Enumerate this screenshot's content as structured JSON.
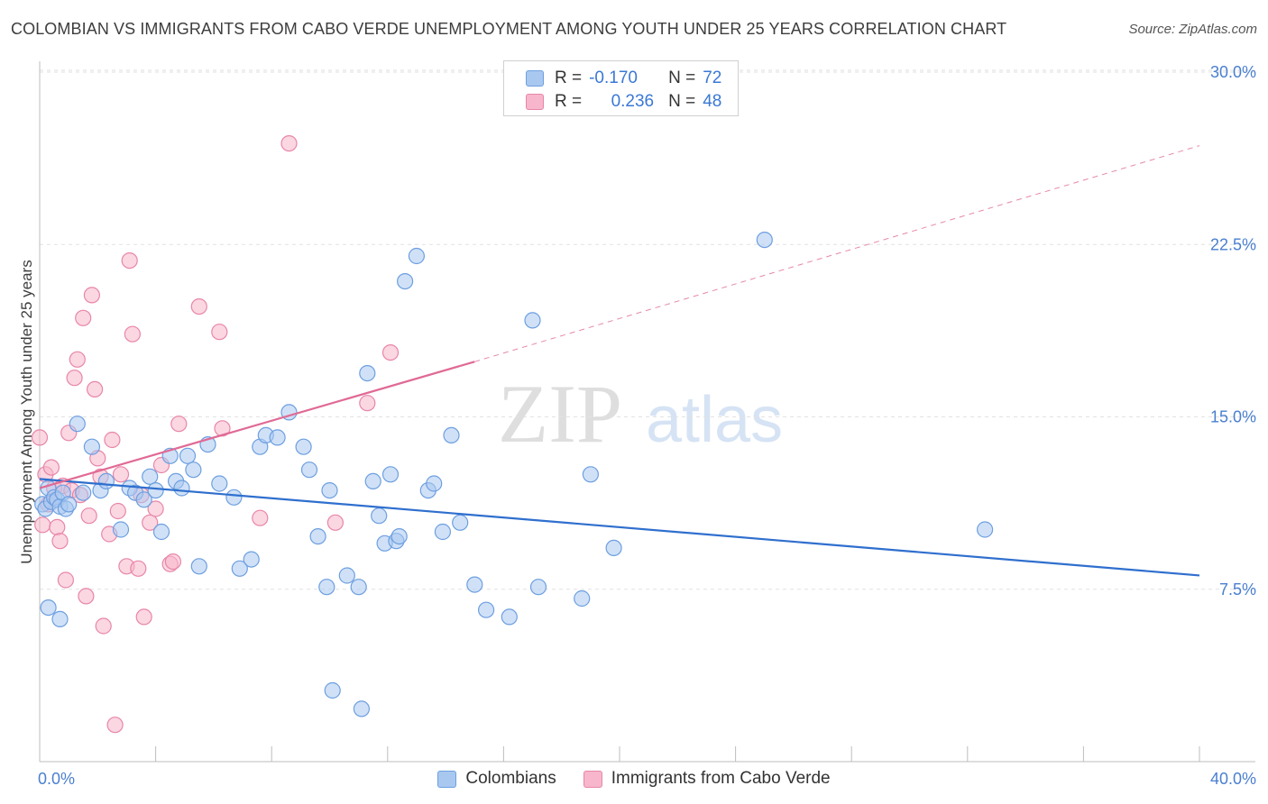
{
  "title": "COLOMBIAN VS IMMIGRANTS FROM CABO VERDE UNEMPLOYMENT AMONG YOUTH UNDER 25 YEARS CORRELATION CHART",
  "source": "Source: ZipAtlas.com",
  "watermark": {
    "zip": "ZIP",
    "atlas": "atlas"
  },
  "stats": {
    "blue": {
      "r_label": "R =",
      "r": "-0.170",
      "n_label": "N =",
      "n": "72"
    },
    "pink": {
      "r_label": "R =",
      "r": "0.236",
      "n_label": "N =",
      "n": "48"
    }
  },
  "legend": {
    "blue": "Colombians",
    "pink": "Immigrants from Cabo Verde"
  },
  "colors": {
    "blue": "#a9c8f0",
    "blue_edge": "#6d9fe0",
    "blue_line": "#2f6fce",
    "pink": "#f7b6cb",
    "pink_edge": "#e886a8",
    "pink_line": "#e06a95",
    "tick": "#4a7fd0"
  },
  "chart_data": {
    "type": "scatter",
    "title": "COLOMBIAN VS IMMIGRANTS FROM CABO VERDE UNEMPLOYMENT AMONG YOUTH UNDER 25 YEARS CORRELATION CHART",
    "xlabel": "",
    "ylabel": "Unemployment Among Youth under 25 years",
    "xlim": [
      0,
      40
    ],
    "ylim": [
      0,
      30.5
    ],
    "x_tick_labels": [
      "0.0%",
      "40.0%"
    ],
    "y_ticks": [
      7.5,
      15.0,
      22.5,
      30.0
    ],
    "y_tick_labels": [
      "7.5%",
      "15.0%",
      "22.5%",
      "30.0%"
    ],
    "grid": true,
    "series": [
      {
        "name": "Colombians",
        "x": [
          0.1,
          0.2,
          0.3,
          0.4,
          0.5,
          0.6,
          0.7,
          0.8,
          0.9,
          1.0,
          1.3,
          1.5,
          1.8,
          2.1,
          2.3,
          2.8,
          3.1,
          3.3,
          3.6,
          3.8,
          4.0,
          4.2,
          4.5,
          4.7,
          4.9,
          5.1,
          5.3,
          5.5,
          5.8,
          6.2,
          6.7,
          6.9,
          7.3,
          7.6,
          7.8,
          8.2,
          8.6,
          9.1,
          9.3,
          9.6,
          9.9,
          10.0,
          10.6,
          11.0,
          11.3,
          11.5,
          11.7,
          11.9,
          12.1,
          12.3,
          12.4,
          12.6,
          13.0,
          13.4,
          13.6,
          13.9,
          14.2,
          14.5,
          15.0,
          15.4,
          16.2,
          17.0,
          17.2,
          18.7,
          19.0,
          19.8,
          25.0,
          32.6,
          0.3,
          0.7,
          10.1,
          11.1
        ],
        "y": [
          11.2,
          11.0,
          11.9,
          11.3,
          11.5,
          11.4,
          11.1,
          11.7,
          11.0,
          11.2,
          14.7,
          11.7,
          13.7,
          11.8,
          12.2,
          10.1,
          11.9,
          11.7,
          11.4,
          12.4,
          11.8,
          10.0,
          13.3,
          12.2,
          11.9,
          13.3,
          12.7,
          8.5,
          13.8,
          12.1,
          11.5,
          8.4,
          8.8,
          13.7,
          14.2,
          14.1,
          15.2,
          13.7,
          12.7,
          9.8,
          7.6,
          11.8,
          8.1,
          7.6,
          16.9,
          12.2,
          10.7,
          9.5,
          12.5,
          9.6,
          9.8,
          20.9,
          22.0,
          11.8,
          12.1,
          10.0,
          14.2,
          10.4,
          7.7,
          6.6,
          6.3,
          19.2,
          7.6,
          7.1,
          12.5,
          9.3,
          22.7,
          10.1,
          6.7,
          6.2,
          3.1,
          2.3
        ]
      },
      {
        "name": "Immigrants from Cabo Verde",
        "x": [
          0.0,
          0.1,
          0.2,
          0.3,
          0.4,
          0.5,
          0.6,
          0.7,
          0.8,
          0.9,
          1.0,
          1.1,
          1.2,
          1.3,
          1.4,
          1.5,
          1.6,
          1.7,
          1.8,
          1.9,
          2.0,
          2.1,
          2.2,
          2.4,
          2.5,
          2.6,
          2.7,
          2.8,
          3.0,
          3.1,
          3.2,
          3.4,
          3.5,
          3.6,
          3.8,
          4.0,
          4.2,
          4.5,
          4.6,
          4.8,
          5.5,
          6.2,
          6.3,
          7.6,
          8.6,
          10.2,
          11.3,
          12.1
        ],
        "y": [
          14.1,
          10.3,
          12.5,
          11.2,
          12.8,
          11.9,
          10.2,
          9.6,
          12.0,
          7.9,
          14.3,
          11.8,
          16.7,
          17.5,
          11.6,
          19.3,
          7.2,
          10.7,
          20.3,
          16.2,
          13.2,
          12.4,
          5.9,
          9.9,
          14.0,
          1.6,
          10.9,
          12.5,
          8.5,
          21.8,
          18.6,
          8.4,
          11.6,
          6.3,
          10.4,
          11.0,
          12.9,
          8.6,
          8.7,
          14.7,
          19.8,
          18.7,
          14.5,
          10.6,
          26.9,
          10.4,
          15.6,
          17.8
        ]
      }
    ],
    "trend_lines": [
      {
        "series": "Colombians",
        "x": [
          0,
          40
        ],
        "y": [
          12.3,
          8.1
        ]
      },
      {
        "series": "Immigrants from Cabo Verde",
        "x": [
          0,
          15
        ],
        "y": [
          11.9,
          17.4
        ],
        "dashed_extension_to": [
          40,
          26.8
        ]
      }
    ]
  }
}
